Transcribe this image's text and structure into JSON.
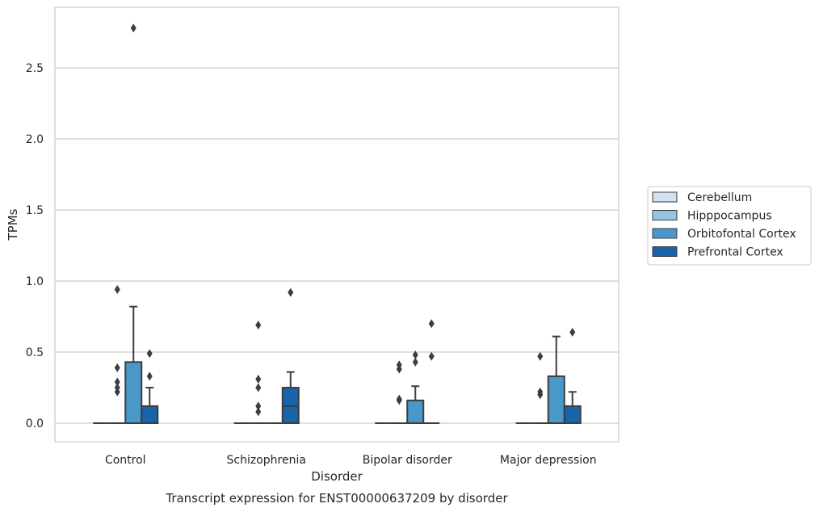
{
  "chart_data": {
    "type": "box",
    "title": "Transcript expression for ENST00000637209 by disorder",
    "xlabel": "Disorder",
    "ylabel": "TPMs",
    "ylim": [
      -0.13,
      2.93
    ],
    "yticks": [
      0.0,
      0.5,
      1.0,
      1.5,
      2.0,
      2.5
    ],
    "ytick_labels": [
      "0.0",
      "0.5",
      "1.0",
      "1.5",
      "2.0",
      "2.5"
    ],
    "categories": [
      "Control",
      "Schizophrenia",
      "Bipolar disorder",
      "Major depression"
    ],
    "grid": "horizontal",
    "legend_position": "right",
    "series": [
      {
        "name": "Cerebellum",
        "color": "#d0e1f2",
        "boxes": [
          {
            "q1": 0,
            "median": 0,
            "q3": 0,
            "whislo": 0,
            "whishi": 0,
            "fliers": []
          },
          {
            "q1": 0,
            "median": 0,
            "q3": 0,
            "whislo": 0,
            "whishi": 0,
            "fliers": []
          },
          {
            "q1": 0,
            "median": 0,
            "q3": 0,
            "whislo": 0,
            "whishi": 0,
            "fliers": []
          },
          {
            "q1": 0,
            "median": 0,
            "q3": 0,
            "whislo": 0,
            "whishi": 0,
            "fliers": []
          }
        ]
      },
      {
        "name": "Hipppocampus",
        "color": "#94c4df",
        "boxes": [
          {
            "q1": 0,
            "median": 0,
            "q3": 0,
            "whislo": 0,
            "whishi": 0,
            "fliers": [
              0.22,
              0.25,
              0.29,
              0.39,
              0.94
            ]
          },
          {
            "q1": 0,
            "median": 0,
            "q3": 0,
            "whislo": 0,
            "whishi": 0,
            "fliers": [
              0.12,
              0.25,
              0.08,
              0.31,
              0.69
            ]
          },
          {
            "q1": 0,
            "median": 0,
            "q3": 0,
            "whislo": 0,
            "whishi": 0,
            "fliers": [
              0.16,
              0.17,
              0.38,
              0.41
            ]
          },
          {
            "q1": 0,
            "median": 0,
            "q3": 0,
            "whislo": 0,
            "whishi": 0,
            "fliers": [
              0.22,
              0.47,
              0.2
            ]
          }
        ]
      },
      {
        "name": "Orbitofontal Cortex",
        "color": "#4a98c9",
        "boxes": [
          {
            "q1": 0,
            "median": 0,
            "q3": 0.43,
            "whislo": 0,
            "whishi": 0.82,
            "fliers": [
              2.78
            ]
          },
          {
            "q1": 0,
            "median": 0,
            "q3": 0,
            "whislo": 0,
            "whishi": 0,
            "fliers": []
          },
          {
            "q1": 0,
            "median": 0,
            "q3": 0.16,
            "whislo": 0,
            "whishi": 0.26,
            "fliers": [
              0.43,
              0.48
            ]
          },
          {
            "q1": 0,
            "median": 0,
            "q3": 0.33,
            "whislo": 0,
            "whishi": 0.61,
            "fliers": []
          }
        ]
      },
      {
        "name": "Prefrontal Cortex",
        "color": "#1764ab",
        "boxes": [
          {
            "q1": 0,
            "median": 0,
            "q3": 0.12,
            "whislo": 0,
            "whishi": 0.25,
            "fliers": [
              0.33,
              0.49
            ]
          },
          {
            "q1": 0,
            "median": 0.12,
            "q3": 0.25,
            "whislo": 0,
            "whishi": 0.36,
            "fliers": [
              0.92
            ]
          },
          {
            "q1": 0,
            "median": 0,
            "q3": 0,
            "whislo": 0,
            "whishi": 0,
            "fliers": [
              0.47,
              0.7
            ]
          },
          {
            "q1": 0,
            "median": 0,
            "q3": 0.12,
            "whislo": 0,
            "whishi": 0.22,
            "fliers": [
              0.64
            ]
          }
        ]
      }
    ]
  }
}
